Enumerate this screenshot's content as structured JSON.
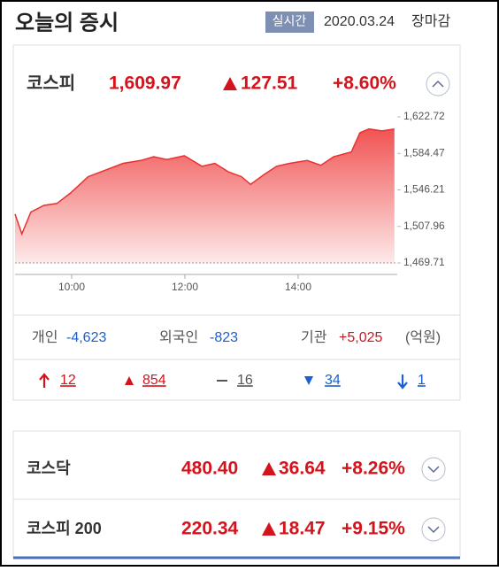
{
  "header": {
    "title": "오늘의 증시",
    "badge": "실시간",
    "date": "2020.03.24",
    "status": "장마감"
  },
  "kospi": {
    "name": "코스피",
    "value": "1,609.97",
    "change": "127.51",
    "rate": "+8.60%"
  },
  "chart_data": {
    "type": "area",
    "color": "#e8312f",
    "x": [
      9.0,
      9.12,
      9.28,
      9.51,
      9.74,
      9.98,
      10.29,
      10.6,
      10.91,
      11.22,
      11.45,
      11.68,
      11.99,
      12.3,
      12.53,
      12.77,
      13.0,
      13.16,
      13.39,
      13.62,
      13.85,
      14.16,
      14.4,
      14.63,
      14.94,
      15.09,
      15.25,
      15.48,
      15.7
    ],
    "values": [
      1521,
      1500,
      1523,
      1530,
      1532,
      1543,
      1560,
      1567,
      1574,
      1577,
      1581,
      1578,
      1582,
      1571,
      1574,
      1565,
      1560,
      1552,
      1562,
      1571,
      1574,
      1577,
      1572,
      1581,
      1586,
      1606,
      1610,
      1608,
      1610
    ],
    "xlim": [
      9.0,
      15.75
    ],
    "xticks": [
      {
        "value": 10,
        "label": "10:00"
      },
      {
        "value": 12,
        "label": "12:00"
      },
      {
        "value": 14,
        "label": "14:00"
      }
    ],
    "ylim": [
      1469.71,
      1622.72
    ],
    "yticks": [
      {
        "value": 1469.71,
        "label": "1,469.71"
      },
      {
        "value": 1507.96,
        "label": "1,507.96"
      },
      {
        "value": 1546.21,
        "label": "1,546.21"
      },
      {
        "value": 1584.47,
        "label": "1,584.47"
      },
      {
        "value": 1622.72,
        "label": "1,622.72"
      }
    ],
    "grid": false
  },
  "investors": [
    {
      "label": "개인",
      "value": "-4,623"
    },
    {
      "label": "외국인",
      "value": "-823"
    },
    {
      "label": "기관",
      "value": "+5,025"
    }
  ],
  "unit": "(억원)",
  "breadth": [
    "12",
    "854",
    "16",
    "34",
    "1"
  ],
  "indices": [
    {
      "name": "코스닥",
      "value": "480.40",
      "change": "36.64",
      "rate": "+8.26%"
    },
    {
      "name": "코스피 200",
      "value": "220.34",
      "change": "18.47",
      "rate": "+9.15%"
    }
  ]
}
